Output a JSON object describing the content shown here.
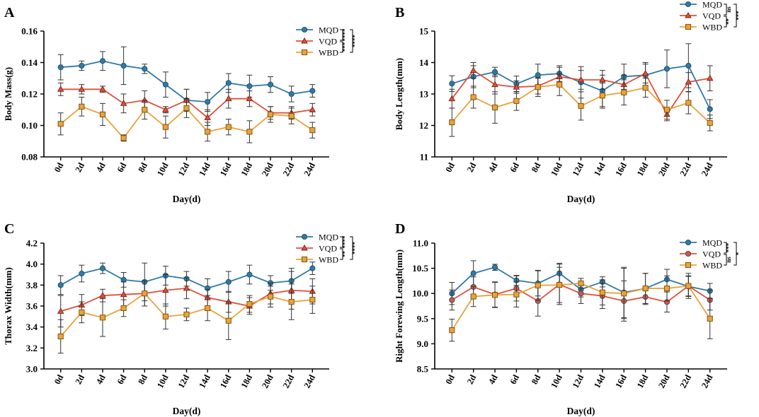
{
  "colors": {
    "MQD": "#2f7aa6",
    "VQD": "#e0503c",
    "WBD": "#e9a23b",
    "error": "#333333",
    "axis": "#000000"
  },
  "chart_data": [
    {
      "panel": "A",
      "type": "line",
      "ylabel": "Body Mass(g)",
      "xlabel": "Day(d)",
      "categories": [
        "0d",
        "2d",
        "4d",
        "6d",
        "8d",
        "10d",
        "12d",
        "14d",
        "16d",
        "18d",
        "20d",
        "22d",
        "24d"
      ],
      "ylim": [
        0.08,
        0.16
      ],
      "yticks": [
        0.08,
        0.1,
        0.12,
        0.14,
        0.16
      ],
      "ytick_labels": [
        "0.08",
        "0.10",
        "0.12",
        "0.14",
        "0.16"
      ],
      "series": [
        {
          "name": "MQD",
          "marker": "circle",
          "values": [
            0.137,
            0.138,
            0.141,
            0.138,
            0.136,
            0.126,
            0.116,
            0.115,
            0.127,
            0.125,
            0.126,
            0.12,
            0.122
          ],
          "errors": [
            0.008,
            0.003,
            0.006,
            0.012,
            0.003,
            0.008,
            0.007,
            0.006,
            0.006,
            0.007,
            0.005,
            0.005,
            0.004
          ]
        },
        {
          "name": "VQD",
          "marker": "triangle",
          "values": [
            0.123,
            0.123,
            0.123,
            0.114,
            0.116,
            0.11,
            0.116,
            0.105,
            0.117,
            0.117,
            0.108,
            0.108,
            0.11
          ],
          "errors": [
            0.004,
            0.003,
            0.002,
            0.006,
            0.006,
            0.002,
            0.007,
            0.005,
            0.006,
            0.005,
            0.004,
            0.004,
            0.004
          ]
        },
        {
          "name": "WBD",
          "marker": "square",
          "values": [
            0.101,
            0.112,
            0.107,
            0.092,
            0.11,
            0.099,
            0.111,
            0.096,
            0.099,
            0.096,
            0.107,
            0.106,
            0.097
          ],
          "errors": [
            0.007,
            0.006,
            0.007,
            0.002,
            0.006,
            0.007,
            0.006,
            0.006,
            0.005,
            0.007,
            0.005,
            0.005,
            0.005
          ]
        }
      ],
      "significance": [
        {
          "pair": "MQD-VQD",
          "label": "****"
        },
        {
          "pair": "VQD-WBD",
          "label": "***"
        },
        {
          "pair": "MQD-WBD",
          "label": "****"
        }
      ]
    },
    {
      "panel": "B",
      "type": "line",
      "ylabel": "Body Length(mm)",
      "xlabel": "Day(d)",
      "categories": [
        "0d",
        "2d",
        "4d",
        "6d",
        "8d",
        "10d",
        "12d",
        "14d",
        "16d",
        "18d",
        "20d",
        "22d",
        "24d"
      ],
      "ylim": [
        11,
        15
      ],
      "yticks": [
        11,
        12,
        13,
        14,
        15
      ],
      "ytick_labels": [
        "11",
        "12",
        "13",
        "14",
        "15"
      ],
      "series": [
        {
          "name": "MQD",
          "marker": "circle",
          "values": [
            13.33,
            13.55,
            13.7,
            13.32,
            13.6,
            13.65,
            13.37,
            13.1,
            13.55,
            13.6,
            13.8,
            13.9,
            12.52
          ],
          "errors": [
            0.25,
            0.35,
            0.15,
            0.25,
            0.35,
            0.25,
            0.5,
            0.5,
            0.4,
            0.4,
            0.6,
            0.7,
            0.3
          ]
        },
        {
          "name": "VQD",
          "marker": "triangle",
          "values": [
            12.85,
            13.75,
            13.3,
            13.22,
            13.25,
            13.55,
            13.45,
            13.45,
            13.3,
            13.65,
            12.35,
            13.38,
            13.5
          ],
          "errors": [
            0.3,
            0.25,
            0.3,
            0.2,
            0.25,
            0.3,
            0.3,
            0.3,
            0.3,
            0.3,
            0.2,
            0.3,
            0.4
          ]
        },
        {
          "name": "WBD",
          "marker": "square",
          "values": [
            12.1,
            12.9,
            12.57,
            12.78,
            13.22,
            13.3,
            12.62,
            12.95,
            13.05,
            13.2,
            12.5,
            12.72,
            12.08
          ],
          "errors": [
            0.45,
            0.35,
            0.5,
            0.3,
            0.3,
            0.35,
            0.45,
            0.4,
            0.4,
            0.3,
            0.3,
            0.35,
            0.25
          ]
        }
      ],
      "significance": [
        {
          "pair": "MQD-VQD",
          "label": "ns"
        },
        {
          "pair": "VQD-WBD",
          "label": "**"
        },
        {
          "pair": "MQD-WBD",
          "label": "***"
        }
      ]
    },
    {
      "panel": "C",
      "type": "line",
      "ylabel": "Thorax Width(mm)",
      "xlabel": "Day(d)",
      "categories": [
        "0d",
        "2d",
        "4d",
        "6d",
        "8d",
        "10d",
        "12d",
        "14d",
        "16d",
        "18d",
        "20d",
        "22d",
        "24d"
      ],
      "ylim": [
        3.0,
        4.2
      ],
      "yticks": [
        3.0,
        3.2,
        3.4,
        3.6,
        3.8,
        4.0,
        4.2
      ],
      "ytick_labels": [
        "3.0",
        "3.2",
        "3.4",
        "3.6",
        "3.8",
        "4.0",
        "4.2"
      ],
      "series": [
        {
          "name": "MQD",
          "marker": "circle",
          "values": [
            3.8,
            3.91,
            3.96,
            3.85,
            3.83,
            3.89,
            3.86,
            3.77,
            3.83,
            3.9,
            3.82,
            3.84,
            3.96
          ],
          "errors": [
            0.09,
            0.08,
            0.05,
            0.07,
            0.18,
            0.09,
            0.07,
            0.09,
            0.1,
            0.09,
            0.07,
            0.12,
            0.06
          ]
        },
        {
          "name": "VQD",
          "marker": "triangle",
          "values": [
            3.55,
            3.61,
            3.7,
            3.71,
            3.72,
            3.75,
            3.77,
            3.68,
            3.64,
            3.6,
            3.72,
            3.75,
            3.74
          ],
          "errors": [
            0.15,
            0.1,
            0.06,
            0.12,
            0.12,
            0.15,
            0.1,
            0.08,
            0.1,
            0.08,
            0.1,
            0.18,
            0.12
          ]
        },
        {
          "name": "WBD",
          "marker": "square",
          "values": [
            3.31,
            3.54,
            3.49,
            3.58,
            3.72,
            3.5,
            3.52,
            3.58,
            3.46,
            3.62,
            3.69,
            3.64,
            3.66
          ],
          "errors": [
            0.16,
            0.1,
            0.18,
            0.08,
            0.12,
            0.12,
            0.06,
            0.12,
            0.18,
            0.08,
            0.1,
            0.17,
            0.13
          ]
        }
      ],
      "significance": [
        {
          "pair": "MQD-VQD",
          "label": "****"
        },
        {
          "pair": "VQD-WBD",
          "label": "**"
        },
        {
          "pair": "MQD-WBD",
          "label": "****"
        }
      ]
    },
    {
      "panel": "D",
      "type": "line",
      "ylabel": "Right Forewing Length(mm)",
      "xlabel": "Day(d)",
      "categories": [
        "0d",
        "2d",
        "4d",
        "6d",
        "8d",
        "10d",
        "12d",
        "14d",
        "16d",
        "18d",
        "20d",
        "22d",
        "24d"
      ],
      "ylim": [
        8.5,
        11.0
      ],
      "yticks": [
        8.5,
        9.0,
        9.5,
        10.0,
        10.5,
        11.0
      ],
      "ytick_labels": [
        "8.5",
        "9.0",
        "9.5",
        "10.0",
        "10.5",
        "11.0"
      ],
      "series": [
        {
          "name": "MQD",
          "marker": "circle",
          "values": [
            10.0,
            10.4,
            10.52,
            10.26,
            10.2,
            10.4,
            10.08,
            10.23,
            10.02,
            10.1,
            10.28,
            10.14,
            10.05
          ],
          "errors": [
            0.22,
            0.25,
            0.06,
            0.1,
            0.25,
            0.2,
            0.15,
            0.1,
            0.5,
            0.3,
            0.2,
            0.2,
            0.15
          ]
        },
        {
          "name": "VQD",
          "marker": "circle",
          "values": [
            9.87,
            10.13,
            9.98,
            10.1,
            9.85,
            10.18,
            10.0,
            9.95,
            9.85,
            9.93,
            9.83,
            10.15,
            9.87
          ],
          "errors": [
            0.2,
            0.2,
            0.25,
            0.25,
            0.3,
            0.4,
            0.2,
            0.25,
            0.4,
            0.15,
            0.2,
            0.2,
            0.2
          ]
        },
        {
          "name": "WBD",
          "marker": "square",
          "values": [
            9.27,
            9.94,
            9.97,
            9.98,
            10.16,
            10.17,
            10.2,
            10.02,
            10.0,
            10.1,
            10.1,
            10.15,
            9.5
          ],
          "errors": [
            0.22,
            0.2,
            0.25,
            0.25,
            0.3,
            0.35,
            0.1,
            0.25,
            0.5,
            0.3,
            0.25,
            0.25,
            0.4
          ]
        }
      ],
      "significance": [
        {
          "pair": "MQD-VQD",
          "label": "***"
        },
        {
          "pair": "VQD-WBD",
          "label": "ns"
        },
        {
          "pair": "MQD-WBD",
          "label": "*"
        }
      ]
    }
  ]
}
